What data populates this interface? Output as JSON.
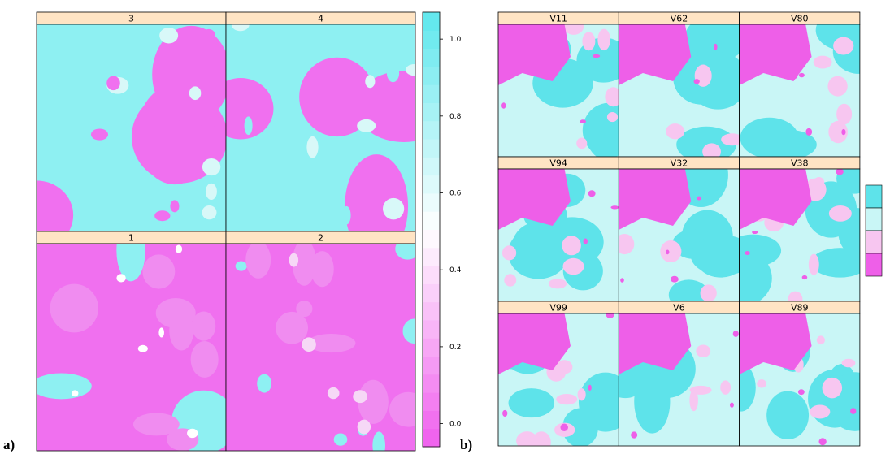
{
  "figure_a": {
    "label": "a)",
    "panels": [
      "3",
      "4",
      "1",
      "2"
    ],
    "colorbar": {
      "ylim": [
        -0.06,
        1.07
      ],
      "ticks": [
        {
          "value": 0,
          "label": "0.0"
        },
        0.2,
        0.4,
        0.6,
        0.8,
        {
          "value": 1,
          "label": "1.0"
        }
      ]
    }
  },
  "figure_b": {
    "label": "b)",
    "panels": [
      "V11",
      "V62",
      "V80",
      "V94",
      "V32",
      "V38",
      "V99",
      "V6",
      "V89"
    ]
  }
}
